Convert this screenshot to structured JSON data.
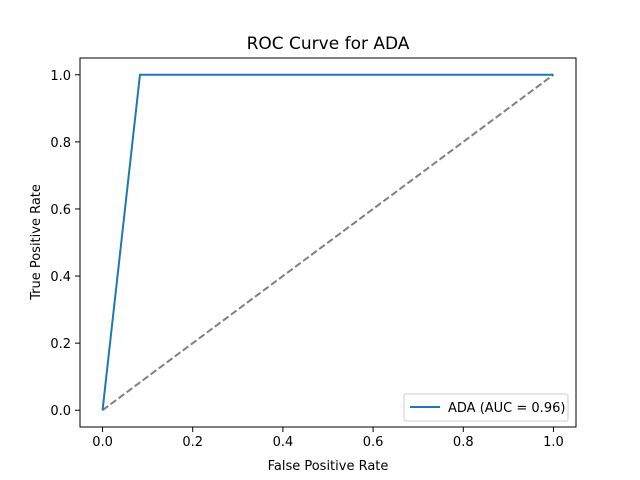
{
  "chart_data": {
    "type": "line",
    "title": "ROC Curve for ADA",
    "xlabel": "False Positive Rate",
    "ylabel": "True Positive Rate",
    "xlim": [
      -0.05,
      1.05
    ],
    "ylim": [
      -0.05,
      1.05
    ],
    "xticks": [
      "0.0",
      "0.2",
      "0.4",
      "0.6",
      "0.8",
      "1.0"
    ],
    "yticks": [
      "0.0",
      "0.2",
      "0.4",
      "0.6",
      "0.8",
      "1.0"
    ],
    "grid": false,
    "legend_position": "lower-right",
    "series": [
      {
        "name": "ADA (AUC = 0.96)",
        "color": "#1f77b4",
        "style": "solid",
        "x": [
          0.0,
          0.083,
          1.0
        ],
        "y": [
          0.0,
          1.0,
          1.0
        ]
      },
      {
        "color": "#808080",
        "style": "dashed",
        "x": [
          0.0,
          1.0
        ],
        "y": [
          0.0,
          1.0
        ]
      }
    ]
  }
}
